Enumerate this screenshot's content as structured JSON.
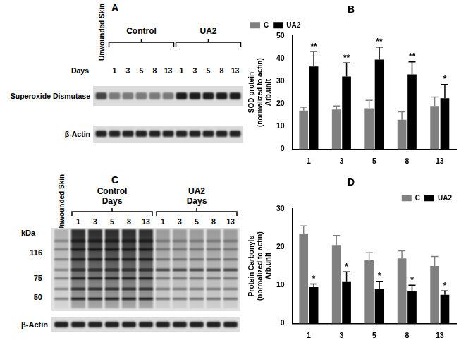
{
  "panels": [
    {
      "title": "A",
      "lane_header": "Unwounded Skin",
      "groups": [
        "Control",
        "UA2"
      ],
      "days_label": "Days",
      "days": [
        "1",
        "3",
        "5",
        "8",
        "13"
      ],
      "rows": [
        "Superoxide Dismutase",
        "β-Actin"
      ]
    },
    {
      "title": "C",
      "lane_header": "Unwounded Skin",
      "groups": [
        "Control",
        "UA2"
      ],
      "days_label": "Days",
      "days": [
        "1",
        "3",
        "5",
        "8",
        "13"
      ],
      "marker_unit": "kDa",
      "markers": [
        116,
        75,
        50
      ],
      "rows": [
        "β-Actin"
      ]
    }
  ],
  "chart_data": [
    {
      "type": "bar",
      "title": "B",
      "y_label": [
        "SOD protein",
        "(normalized to actin)",
        "Arb.unit"
      ],
      "categories": [
        "1",
        "3",
        "5",
        "8",
        "13"
      ],
      "series": [
        {
          "name": "C",
          "color": "#808080",
          "values": [
            17,
            17.5,
            18,
            13,
            19
          ],
          "errors": [
            1.5,
            1.5,
            3.5,
            3.5,
            4
          ]
        },
        {
          "name": "UA2",
          "color": "#000000",
          "values": [
            36.5,
            32,
            39.5,
            33,
            22.5
          ],
          "errors": [
            6.5,
            6,
            5.5,
            5.5,
            6
          ],
          "significance": [
            "**",
            "**",
            "**",
            "**",
            "*"
          ]
        }
      ],
      "ylim": [
        0,
        50
      ],
      "yticks": [
        0,
        10,
        20,
        30,
        40,
        50
      ],
      "grid": false,
      "legend": "top-left"
    },
    {
      "type": "bar",
      "title": "D",
      "y_label": [
        "Protein Carbonyls",
        "(normalized to actin)",
        "Arb.unit"
      ],
      "categories": [
        "1",
        "3",
        "5",
        "8",
        "13"
      ],
      "series": [
        {
          "name": "C",
          "color": "#808080",
          "values": [
            23.5,
            20.5,
            16.5,
            17,
            15
          ],
          "errors": [
            2,
            2.5,
            2,
            2,
            2.5
          ]
        },
        {
          "name": "UA2",
          "color": "#000000",
          "values": [
            9.5,
            11,
            9,
            8.5,
            7.5
          ],
          "errors": [
            0.8,
            2.5,
            2,
            1.5,
            1
          ],
          "significance": [
            "*",
            "*",
            "*",
            "*",
            "*"
          ]
        }
      ],
      "ylim": [
        0,
        30
      ],
      "yticks": [
        0,
        10,
        20,
        30
      ],
      "grid": false,
      "legend": "top-right"
    }
  ]
}
